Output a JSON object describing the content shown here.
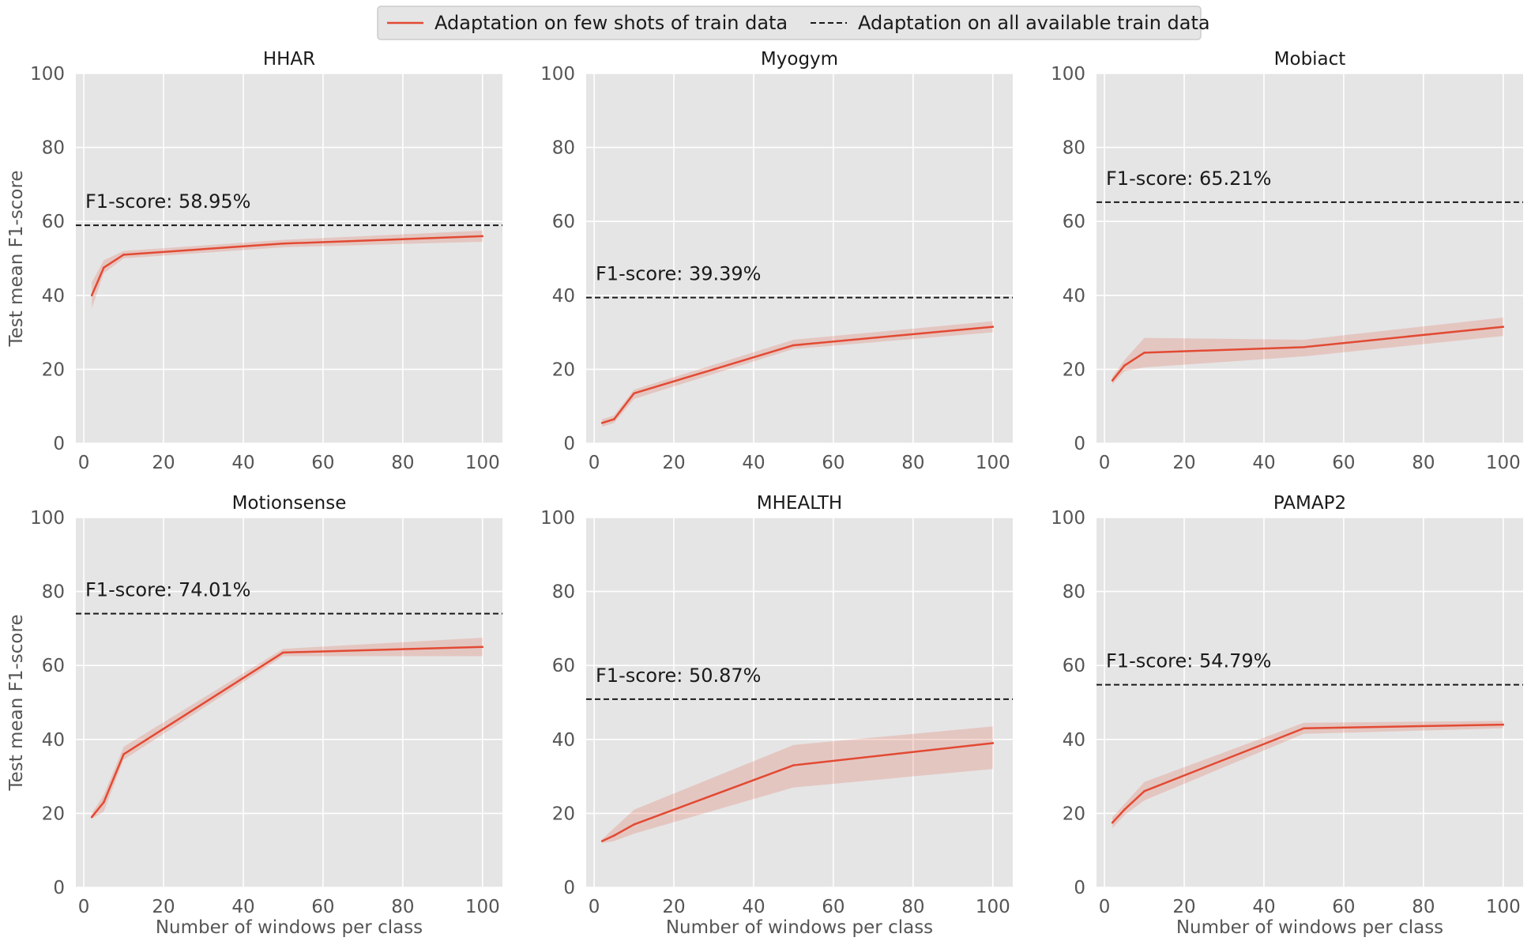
{
  "legend": {
    "few_shot_label": "Adaptation on few shots of train data",
    "all_data_label": "Adaptation on all available train data"
  },
  "colors": {
    "line": "#E24A33",
    "band": "#E24A33",
    "panel_bg": "#E5E5E5",
    "grid": "#FFFFFF",
    "ref_line": "#1a1a1a"
  },
  "chart_data": [
    {
      "type": "line",
      "title": "HHAR",
      "xlabel": "",
      "ylabel": "Test mean F1-score",
      "xlim": [
        -2,
        105
      ],
      "ylim": [
        0,
        100
      ],
      "xticks": [
        0,
        20,
        40,
        60,
        80,
        100
      ],
      "yticks": [
        0,
        20,
        40,
        60,
        80,
        100
      ],
      "x": [
        2,
        5,
        10,
        50,
        100
      ],
      "series": [
        {
          "name": "Adaptation on few shots of train data",
          "values": [
            40.0,
            47.5,
            51.0,
            54.0,
            56.0
          ]
        }
      ],
      "band_lower": [
        36.5,
        46.0,
        50.0,
        53.0,
        54.5
      ],
      "band_upper": [
        43.5,
        49.5,
        52.0,
        55.0,
        57.5
      ],
      "reference": {
        "name": "Adaptation on all available train data",
        "value": 58.95
      },
      "annotation": "F1-score: 58.95%",
      "grid": true,
      "legend_position": "top-center"
    },
    {
      "type": "line",
      "title": "Myogym",
      "xlabel": "",
      "ylabel": "",
      "xlim": [
        -2,
        105
      ],
      "ylim": [
        0,
        100
      ],
      "xticks": [
        0,
        20,
        40,
        60,
        80,
        100
      ],
      "yticks": [
        0,
        20,
        40,
        60,
        80,
        100
      ],
      "x": [
        2,
        5,
        10,
        50,
        100
      ],
      "series": [
        {
          "name": "Adaptation on few shots of train data",
          "values": [
            5.5,
            6.5,
            13.5,
            26.5,
            31.5
          ]
        }
      ],
      "band_lower": [
        4.5,
        5.5,
        12.0,
        25.5,
        30.0
      ],
      "band_upper": [
        6.5,
        7.5,
        14.5,
        28.0,
        33.0
      ],
      "reference": {
        "name": "Adaptation on all available train data",
        "value": 39.39
      },
      "annotation": "F1-score: 39.39%",
      "grid": true
    },
    {
      "type": "line",
      "title": "Mobiact",
      "xlabel": "",
      "ylabel": "",
      "xlim": [
        -2,
        105
      ],
      "ylim": [
        0,
        100
      ],
      "xticks": [
        0,
        20,
        40,
        60,
        80,
        100
      ],
      "yticks": [
        0,
        20,
        40,
        60,
        80,
        100
      ],
      "x": [
        2,
        5,
        10,
        50,
        100
      ],
      "series": [
        {
          "name": "Adaptation on few shots of train data",
          "values": [
            17.0,
            21.0,
            24.5,
            26.0,
            31.5
          ]
        }
      ],
      "band_lower": [
        16.0,
        19.5,
        20.5,
        23.5,
        29.0
      ],
      "band_upper": [
        18.0,
        22.5,
        28.5,
        28.0,
        34.0
      ],
      "reference": {
        "name": "Adaptation on all available train data",
        "value": 65.21
      },
      "annotation": "F1-score: 65.21%",
      "grid": true
    },
    {
      "type": "line",
      "title": "Motionsense",
      "xlabel": "Number of windows per class",
      "ylabel": "Test mean F1-score",
      "xlim": [
        -2,
        105
      ],
      "ylim": [
        0,
        100
      ],
      "xticks": [
        0,
        20,
        40,
        60,
        80,
        100
      ],
      "yticks": [
        0,
        20,
        40,
        60,
        80,
        100
      ],
      "x": [
        2,
        5,
        10,
        50,
        100
      ],
      "series": [
        {
          "name": "Adaptation on few shots of train data",
          "values": [
            19.0,
            23.0,
            36.0,
            63.5,
            65.0
          ]
        }
      ],
      "band_lower": [
        18.5,
        20.5,
        34.5,
        62.5,
        62.5
      ],
      "band_upper": [
        20.0,
        25.0,
        38.0,
        64.5,
        67.5
      ],
      "reference": {
        "name": "Adaptation on all available train data",
        "value": 74.01
      },
      "annotation": "F1-score: 74.01%",
      "grid": true
    },
    {
      "type": "line",
      "title": "MHEALTH",
      "xlabel": "Number of windows per class",
      "ylabel": "",
      "xlim": [
        -2,
        105
      ],
      "ylim": [
        0,
        100
      ],
      "xticks": [
        0,
        20,
        40,
        60,
        80,
        100
      ],
      "yticks": [
        0,
        20,
        40,
        60,
        80,
        100
      ],
      "x": [
        2,
        5,
        10,
        50,
        100
      ],
      "series": [
        {
          "name": "Adaptation on few shots of train data",
          "values": [
            12.5,
            14.0,
            17.0,
            33.0,
            39.0
          ]
        }
      ],
      "band_lower": [
        12.0,
        12.5,
        14.5,
        27.0,
        32.0
      ],
      "band_upper": [
        13.0,
        16.0,
        21.0,
        38.5,
        43.5
      ],
      "reference": {
        "name": "Adaptation on all available train data",
        "value": 50.87
      },
      "annotation": "F1-score: 50.87%",
      "grid": true
    },
    {
      "type": "line",
      "title": "PAMAP2",
      "xlabel": "Number of windows per class",
      "ylabel": "",
      "xlim": [
        -2,
        105
      ],
      "ylim": [
        0,
        100
      ],
      "xticks": [
        0,
        20,
        40,
        60,
        80,
        100
      ],
      "yticks": [
        0,
        20,
        40,
        60,
        80,
        100
      ],
      "x": [
        2,
        5,
        10,
        50,
        100
      ],
      "series": [
        {
          "name": "Adaptation on few shots of train data",
          "values": [
            17.5,
            21.0,
            26.0,
            43.0,
            44.0
          ]
        }
      ],
      "band_lower": [
        16.0,
        19.5,
        23.5,
        41.5,
        43.0
      ],
      "band_upper": [
        19.0,
        22.5,
        28.5,
        44.5,
        45.0
      ],
      "reference": {
        "name": "Adaptation on all available train data",
        "value": 54.79
      },
      "annotation": "F1-score: 54.79%",
      "grid": true
    }
  ]
}
